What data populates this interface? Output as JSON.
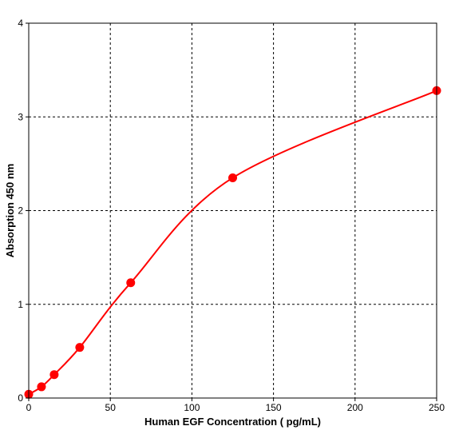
{
  "chart_data": {
    "type": "scatter",
    "title": "",
    "xlabel": "Human EGF Concentration ( pg/mL)",
    "ylabel": "Absorption 450 nm",
    "xlim": [
      0,
      250
    ],
    "ylim": [
      0,
      4
    ],
    "x_ticks": [
      "0",
      "50",
      "100",
      "150",
      "200",
      "250"
    ],
    "y_ticks": [
      "0",
      "1",
      "2",
      "3",
      "4"
    ],
    "grid": true,
    "grid_style": "dashed",
    "color": "#ff0000",
    "series": [
      {
        "x": [
          0,
          7.8,
          15.6,
          31.25,
          62.5,
          125,
          250
        ],
        "y": [
          0.04,
          0.12,
          0.25,
          0.54,
          1.23,
          2.35,
          3.28
        ]
      }
    ]
  }
}
